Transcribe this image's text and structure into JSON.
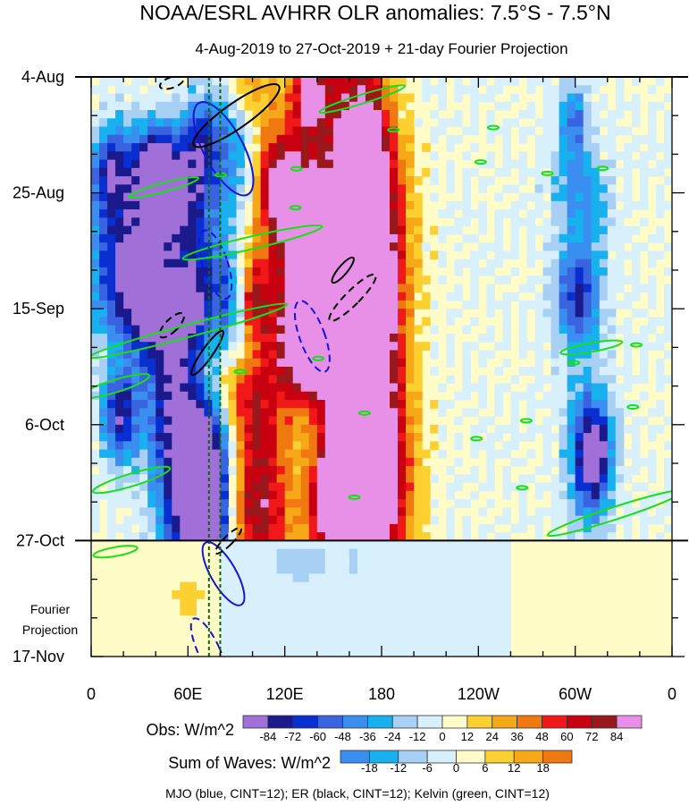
{
  "chart_data": {
    "type": "heatmap",
    "title": "NOAA/ESRL AVHRR OLR anomalies: 7.5°S - 7.5°N",
    "subtitle": "4-Aug-2019 to 27-Oct-2019 + 21-day Fourier Projection",
    "x_ticks": [
      {
        "label": "0",
        "lon": 0
      },
      {
        "label": "60E",
        "lon": 60
      },
      {
        "label": "120E",
        "lon": 120
      },
      {
        "label": "180",
        "lon": 180
      },
      {
        "label": "120W",
        "lon": 240
      },
      {
        "label": "60W",
        "lon": 300
      },
      {
        "label": "0",
        "lon": 360
      }
    ],
    "y_ticks": [
      {
        "label": "4-Aug",
        "day": 0
      },
      {
        "label": "25-Aug",
        "day": 21
      },
      {
        "label": "15-Sep",
        "day": 42
      },
      {
        "label": "6-Oct",
        "day": 63
      },
      {
        "label": "27-Oct",
        "day": 84
      },
      {
        "label": "17-Nov",
        "day": 105
      }
    ],
    "xlim": [
      0,
      360
    ],
    "ylim_days": [
      0,
      105
    ],
    "projection_label": [
      "Fourier",
      "Projection"
    ],
    "obs_colorbar": {
      "label": "Obs: W/m^2",
      "levels": [
        -84,
        -72,
        -60,
        -48,
        -36,
        -24,
        -12,
        0,
        12,
        24,
        36,
        48,
        60,
        72,
        84
      ],
      "colors": [
        "#a070d8",
        "#1a1a8c",
        "#0a2fd0",
        "#3a63e0",
        "#3a8ef0",
        "#18b0ee",
        "#a8d0f5",
        "#d8f0fb",
        "#fffcc8",
        "#fbd030",
        "#f6a818",
        "#f07810",
        "#f01818",
        "#c80010",
        "#98181c",
        "#e890e8"
      ]
    },
    "waves_colorbar": {
      "label": "Sum of Waves: W/m^2",
      "levels": [
        -18,
        -12,
        -6,
        0,
        6,
        12,
        18
      ],
      "colors": [
        "#3a8ef0",
        "#18b0ee",
        "#a8d0f5",
        "#d8f0fb",
        "#fffcc8",
        "#fbd030",
        "#f6a818",
        "#f07810"
      ]
    },
    "footer": "MJO (blue, CINT=12); ER (black, CINT=12); Kelvin (green, CINT=12)",
    "series": [
      {
        "name": "MJO",
        "color": "#1414d8"
      },
      {
        "name": "ER",
        "color": "#000000"
      },
      {
        "name": "Kelvin",
        "color": "#18e018"
      }
    ],
    "reference_lines_lon": [
      73,
      80
    ]
  }
}
